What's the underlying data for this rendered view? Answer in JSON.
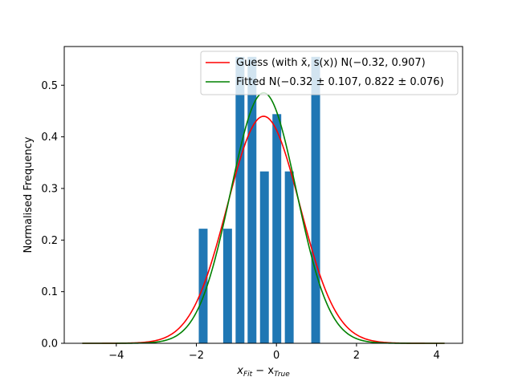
{
  "chart_data": {
    "type": "bar",
    "xlabel": "x_Fit − x_True",
    "xlabel_main": "x",
    "xlabel_sub1": "Fit",
    "xlabel_mid": " − x",
    "xlabel_sub2": "True",
    "ylabel": "Normalised Frequency",
    "xlim": [
      -5.3,
      4.65
    ],
    "ylim": [
      0,
      0.575
    ],
    "xticks": [
      -4,
      -2,
      0,
      2,
      4
    ],
    "xtick_labels": [
      "−4",
      "−2",
      "0",
      "2",
      "4"
    ],
    "yticks": [
      0.0,
      0.1,
      0.2,
      0.3,
      0.4,
      0.5
    ],
    "ytick_labels": [
      "0.0",
      "0.1",
      "0.2",
      "0.3",
      "0.4",
      "0.5"
    ],
    "bar_width": 0.22,
    "bars": [
      {
        "x": -1.83,
        "value": 0.222
      },
      {
        "x": -1.22,
        "value": 0.222
      },
      {
        "x": -0.91,
        "value": 0.555
      },
      {
        "x": -0.61,
        "value": 0.555
      },
      {
        "x": -0.3,
        "value": 0.333
      },
      {
        "x": 0.01,
        "value": 0.444
      },
      {
        "x": 0.32,
        "value": 0.333
      },
      {
        "x": 0.98,
        "value": 0.555
      }
    ],
    "series": [
      {
        "name": "Guess (with x̄, s(x)) N(−0.32, 0.907)",
        "type": "normal_pdf",
        "mean": -0.32,
        "sd": 0.907,
        "x_range": [
          -4.85,
          4.2
        ],
        "color": "#ff0000"
      },
      {
        "name": "Fitted N(−0.32 ± 0.107, 0.822 ± 0.076)",
        "type": "normal_pdf",
        "mean": -0.32,
        "sd": 0.822,
        "x_range": [
          -4.85,
          4.2
        ],
        "color": "#008000"
      }
    ],
    "bar_color": "#1f77b4",
    "legend_position": "upper-right",
    "grid": false
  }
}
